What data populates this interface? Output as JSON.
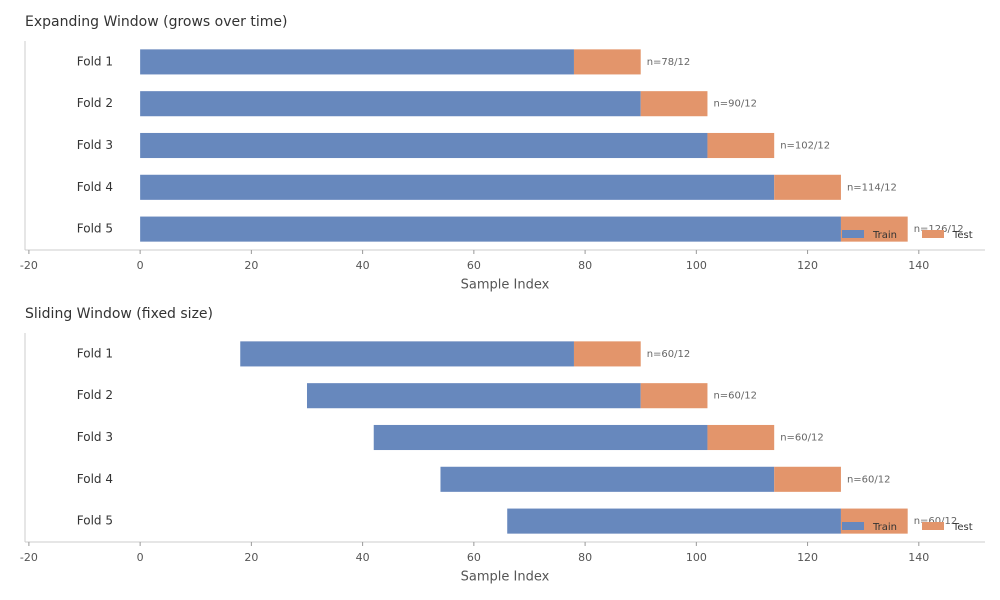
{
  "chart_data": [
    {
      "type": "bar",
      "orientation": "horizontal",
      "title": "Expanding Window (grows over time)",
      "xlabel": "Sample Index",
      "categories": [
        "Fold 1",
        "Fold 2",
        "Fold 3",
        "Fold 4",
        "Fold 5"
      ],
      "offset": [
        0,
        0,
        0,
        0,
        0
      ],
      "series": [
        {
          "name": "Train",
          "color": "#6788bd",
          "values": [
            78,
            90,
            102,
            114,
            126
          ]
        },
        {
          "name": "Test",
          "color": "#e3956b",
          "values": [
            12,
            12,
            12,
            12,
            12
          ]
        }
      ],
      "annotations": [
        "n=78/12",
        "n=90/12",
        "n=102/12",
        "n=114/12",
        "n=126/12"
      ],
      "xlim": [
        -20.7,
        151.9
      ],
      "xticks": [
        -20,
        0,
        20,
        40,
        60,
        80,
        100,
        120,
        140
      ],
      "legend": "lower right"
    },
    {
      "type": "bar",
      "orientation": "horizontal",
      "title": "Sliding Window (fixed size)",
      "xlabel": "Sample Index",
      "categories": [
        "Fold 1",
        "Fold 2",
        "Fold 3",
        "Fold 4",
        "Fold 5"
      ],
      "offset": [
        18,
        30,
        42,
        54,
        66
      ],
      "series": [
        {
          "name": "Train",
          "color": "#6788bd",
          "values": [
            60,
            60,
            60,
            60,
            60
          ]
        },
        {
          "name": "Test",
          "color": "#e3956b",
          "values": [
            12,
            12,
            12,
            12,
            12
          ]
        }
      ],
      "annotations": [
        "n=60/12",
        "n=60/12",
        "n=60/12",
        "n=60/12",
        "n=60/12"
      ],
      "xlim": [
        -20.7,
        151.9
      ],
      "xticks": [
        -20,
        0,
        20,
        40,
        60,
        80,
        100,
        120,
        140
      ],
      "legend": "lower right"
    }
  ]
}
